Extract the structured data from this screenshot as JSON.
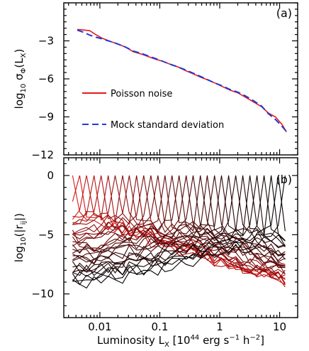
{
  "chart_data": [
    {
      "panel": "(a)",
      "type": "line",
      "x_scale": "log",
      "xlim": [
        0.0025,
        20
      ],
      "ylim": [
        -12,
        0
      ],
      "y_ticks": [
        -3,
        -6,
        -9,
        -12
      ],
      "y_tick_labels": [
        "−3",
        "−6",
        "−9",
        "−12"
      ],
      "ylabel": {
        "main": "log",
        "sub1": "10",
        "mid": " σ",
        "sub2": "Φ",
        "paren_open": "(L",
        "sub3": "X",
        "paren_close": ")"
      },
      "legend": {
        "position": "bottom-left",
        "entries": [
          {
            "name": "Poisson noise",
            "color": "#e8191b",
            "dash": "solid"
          },
          {
            "name": "Mock standard deviation",
            "color": "#1f3bd6",
            "dash": "dashed"
          }
        ]
      },
      "series": [
        {
          "name": "Poisson noise",
          "color": "#e8191b",
          "x": [
            0.0042,
            0.0055,
            0.0068,
            0.0085,
            0.011,
            0.015,
            0.02,
            0.027,
            0.036,
            0.05,
            0.065,
            0.085,
            0.11,
            0.15,
            0.2,
            0.27,
            0.36,
            0.5,
            0.65,
            0.85,
            1.1,
            1.5,
            2.0,
            2.7,
            3.6,
            5.0,
            6.5,
            8.5,
            11,
            13
          ],
          "y": [
            -2.1,
            -2.15,
            -2.2,
            -2.5,
            -2.8,
            -3.05,
            -3.25,
            -3.5,
            -3.85,
            -4.05,
            -4.25,
            -4.45,
            -4.6,
            -4.85,
            -5.05,
            -5.35,
            -5.6,
            -5.9,
            -6.1,
            -6.35,
            -6.6,
            -6.9,
            -7.1,
            -7.45,
            -7.8,
            -8.2,
            -8.7,
            -9.0,
            -9.6,
            -10.2
          ]
        },
        {
          "name": "Mock standard deviation",
          "color": "#1f3bd6",
          "x": [
            0.0042,
            0.0055,
            0.0068,
            0.0085,
            0.011,
            0.015,
            0.02,
            0.027,
            0.036,
            0.05,
            0.065,
            0.085,
            0.11,
            0.15,
            0.2,
            0.27,
            0.36,
            0.5,
            0.65,
            0.85,
            1.1,
            1.5,
            2.0,
            2.7,
            3.6,
            5.0,
            6.5,
            8.5,
            11,
            13
          ],
          "y": [
            -2.15,
            -2.35,
            -2.55,
            -2.7,
            -2.85,
            -3.05,
            -3.25,
            -3.5,
            -3.8,
            -4.0,
            -4.2,
            -4.4,
            -4.6,
            -4.85,
            -5.05,
            -5.3,
            -5.55,
            -5.85,
            -6.1,
            -6.35,
            -6.55,
            -6.85,
            -7.05,
            -7.35,
            -7.7,
            -8.15,
            -8.75,
            -9.2,
            -9.75,
            -10.15
          ]
        }
      ]
    },
    {
      "panel": "(b)",
      "type": "line",
      "x_scale": "log",
      "xlim": [
        0.0025,
        20
      ],
      "ylim": [
        -12,
        1.5
      ],
      "y_ticks": [
        0,
        -5,
        -10
      ],
      "y_tick_labels": [
        "0",
        "−5",
        "−10"
      ],
      "x_ticks": [
        0.01,
        0.1,
        1,
        10
      ],
      "x_tick_labels": [
        "0.01",
        "0.1",
        "1",
        "10"
      ],
      "ylabel": {
        "main": "log",
        "sub1": "10",
        "rest": "(|r",
        "sub2": "ij",
        "close": "|)"
      },
      "xlabel": {
        "main": "Luminosity L",
        "sub": "X",
        "bracket": "  [10",
        "sup1": "44",
        "units": " erg s",
        "sup2": "−1",
        "units2": " h",
        "sup3": "−2",
        "close": "]"
      },
      "bin_centers": [
        0.0035,
        0.0046,
        0.006,
        0.008,
        0.0105,
        0.0138,
        0.018,
        0.024,
        0.031,
        0.041,
        0.054,
        0.071,
        0.093,
        0.122,
        0.16,
        0.21,
        0.276,
        0.36,
        0.475,
        0.62,
        0.82,
        1.07,
        1.41,
        1.85,
        2.43,
        3.19,
        4.19,
        5.5,
        7.22,
        9.48,
        12.4
      ],
      "peak_y": 0,
      "near_y": [
        -2.7,
        -3.0,
        -3.1,
        -3.2,
        -3.3,
        -3.4,
        -3.5,
        -3.6,
        -3.6,
        -3.7,
        -3.8,
        -3.8,
        -3.9,
        -3.9,
        -4.0,
        -4.0,
        -4.1,
        -4.1,
        -4.2,
        -4.2,
        -4.3,
        -4.3,
        -4.4,
        -4.4,
        -4.5,
        -4.5,
        -4.6,
        -4.6,
        -4.7,
        -4.7,
        -4.8
      ],
      "colors": {
        "start": "#e01818",
        "end": "#000000"
      }
    }
  ]
}
